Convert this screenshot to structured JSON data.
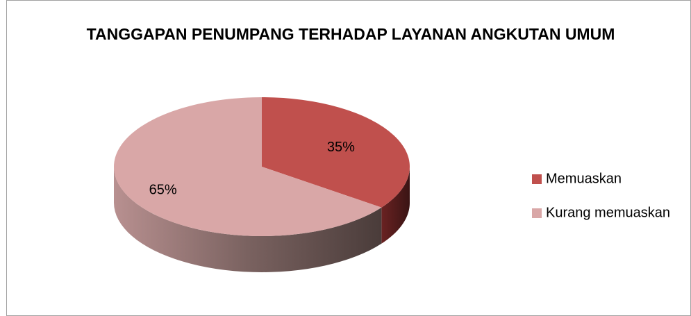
{
  "chart_data": {
    "type": "pie",
    "title": "TANGGAPAN PENUMPANG TERHADAP LAYANAN ANGKUTAN UMUM",
    "categories": [
      "Memuaskan",
      "Kurang memuaskan"
    ],
    "values": [
      35,
      65
    ],
    "value_labels": [
      "35%",
      "65%"
    ],
    "colors": [
      "#c0504d",
      "#d9a7a7"
    ],
    "legend": "right"
  }
}
